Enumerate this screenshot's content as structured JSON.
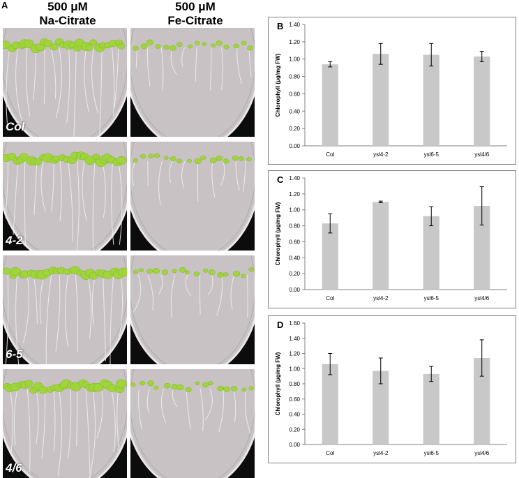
{
  "panel_a": {
    "letter": "A",
    "columns": [
      {
        "line1": "500 μM",
        "line2": "Na-Citrate"
      },
      {
        "line1": "500 μM",
        "line2": "Fe-Citrate"
      }
    ],
    "rows": [
      "Col",
      "4-2",
      "6-5",
      "4/6"
    ]
  },
  "colors": {
    "bar_fill": "#c8c8c8",
    "axis": "#808080",
    "seedling_green": "#9fd43a",
    "agar": "#c9c2c4",
    "background": "#0c0c0c"
  },
  "chart_data": [
    {
      "panel": "B",
      "type": "bar",
      "categories": [
        "Col",
        "ysl4-2",
        "ysl6-5",
        "ysl4/6"
      ],
      "values": [
        0.94,
        1.06,
        1.05,
        1.03
      ],
      "errors": [
        0.03,
        0.12,
        0.13,
        0.06
      ],
      "ylabel": "Chlorophyll (μg/mg FW)",
      "ylim": [
        0,
        1.4
      ],
      "yticks": [
        "0.00",
        "0.20",
        "0.40",
        "0.60",
        "0.80",
        "1.00",
        "1.20",
        "1.40"
      ],
      "grid": false
    },
    {
      "panel": "C",
      "type": "bar",
      "categories": [
        "Col",
        "ysl4-2",
        "ysl6-5",
        "ysl4/6"
      ],
      "values": [
        0.83,
        1.1,
        0.92,
        1.05
      ],
      "errors": [
        0.12,
        0.01,
        0.12,
        0.24
      ],
      "ylabel": "Chlorophyll (μg/mg FW)",
      "ylim": [
        0,
        1.4
      ],
      "yticks": [
        "0.00",
        "0.20",
        "0.40",
        "0.60",
        "0.80",
        "1.00",
        "1.20",
        "1.40"
      ],
      "grid": false
    },
    {
      "panel": "D",
      "type": "bar",
      "categories": [
        "Col",
        "ysl4-2",
        "ysl6-5",
        "ysl4/6"
      ],
      "values": [
        1.06,
        0.97,
        0.93,
        1.14
      ],
      "errors": [
        0.14,
        0.17,
        0.1,
        0.24
      ],
      "ylabel": "Chlorophyll (μg/mg FW)",
      "ylim": [
        0,
        1.6
      ],
      "yticks": [
        "0.00",
        "0.20",
        "0.40",
        "0.60",
        "0.80",
        "1.00",
        "1.20",
        "1.40",
        "1.60"
      ],
      "grid": false
    }
  ]
}
